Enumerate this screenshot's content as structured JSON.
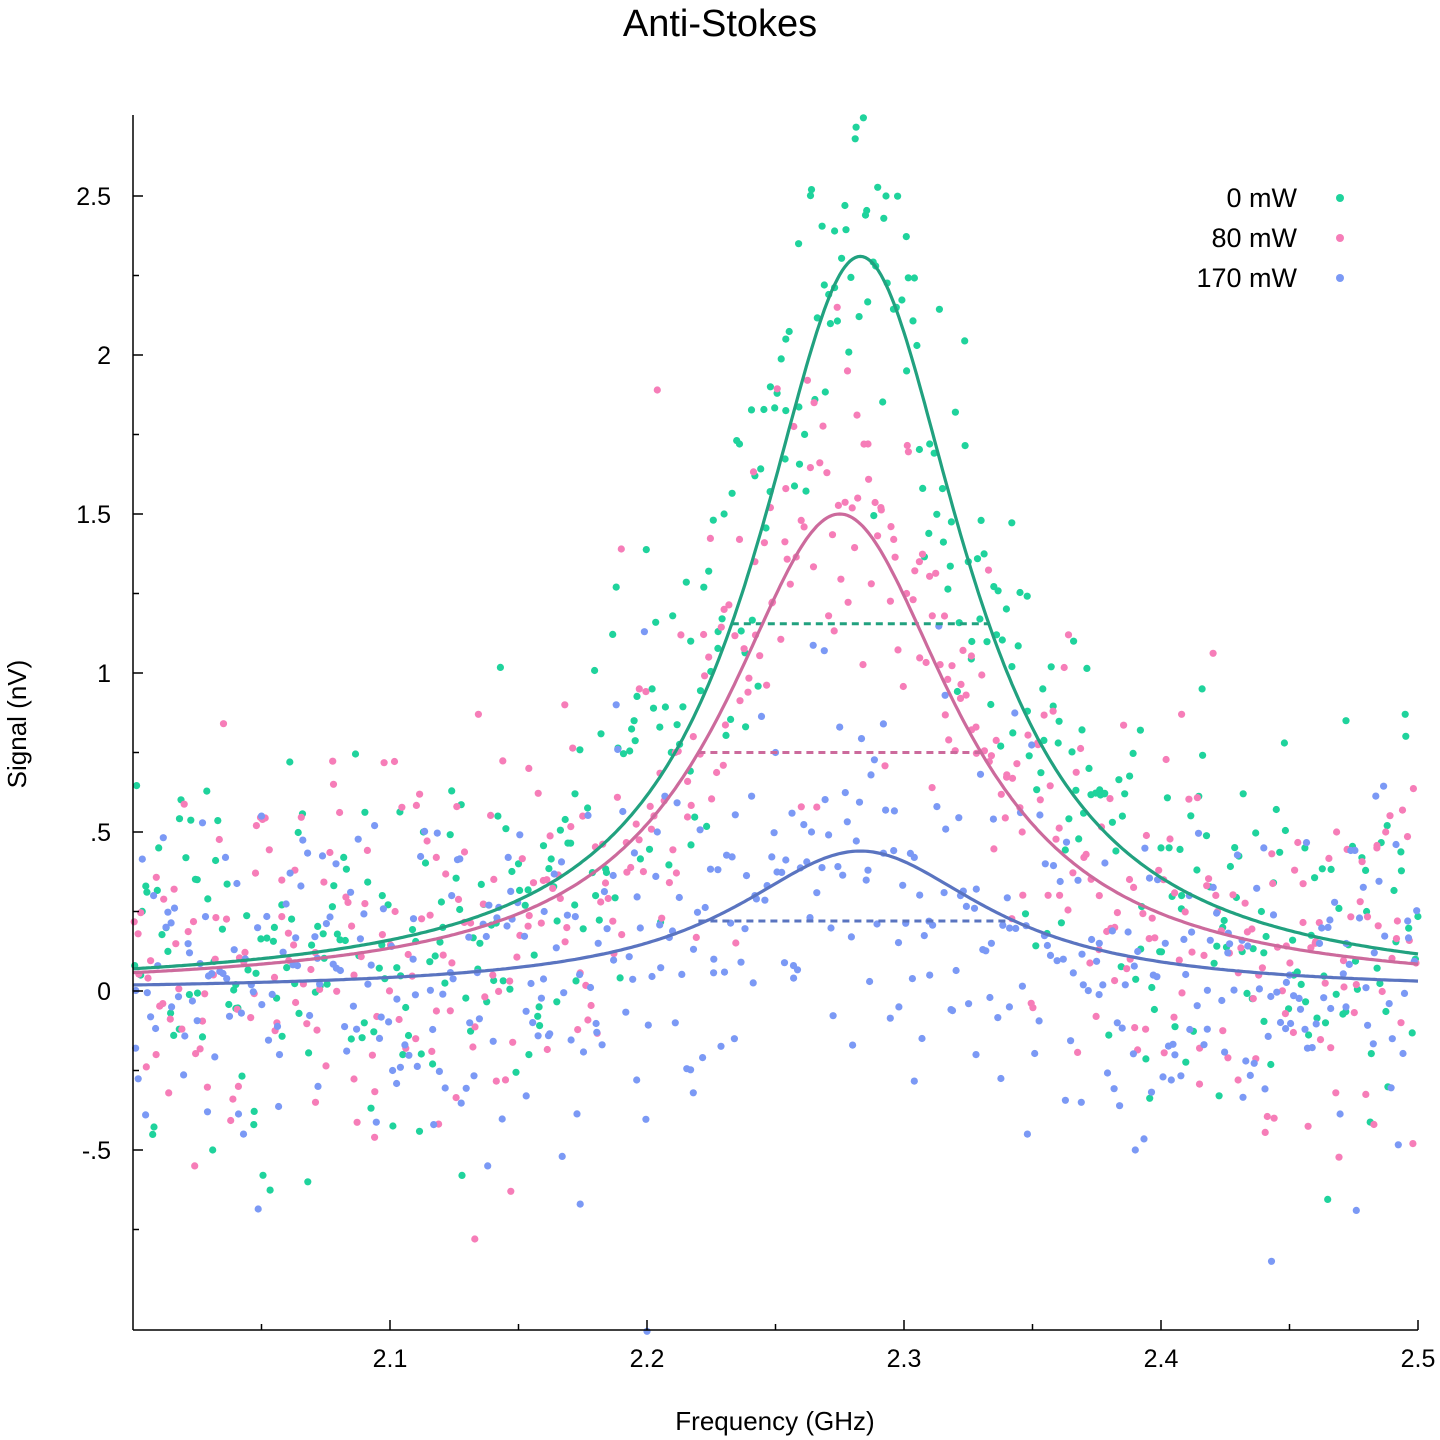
{
  "chart_data": {
    "type": "scatter",
    "title": "Anti-Stokes",
    "xlabel": "Frequency (GHz)",
    "ylabel": "Signal (nV)",
    "xlim": [
      2.0,
      2.5
    ],
    "ylim": [
      -1.07,
      2.75
    ],
    "x_ticks": [
      {
        "value": 2.1,
        "label": "2.1"
      },
      {
        "value": 2.2,
        "label": "2.2"
      },
      {
        "value": 2.3,
        "label": "2.3"
      },
      {
        "value": 2.4,
        "label": "2.4"
      },
      {
        "value": 2.5,
        "label": "2.5"
      }
    ],
    "x_minor_ticks": [
      2.05,
      2.15,
      2.25,
      2.35,
      2.45
    ],
    "y_ticks": [
      {
        "value": -0.5,
        "label": "-.5"
      },
      {
        "value": 0,
        "label": "0"
      },
      {
        "value": 0.5,
        "label": ".5"
      },
      {
        "value": 1,
        "label": "1"
      },
      {
        "value": 1.5,
        "label": "1.5"
      },
      {
        "value": 2,
        "label": "2"
      },
      {
        "value": 2.5,
        "label": "2.5"
      }
    ],
    "y_minor_ticks": [
      -0.75,
      -0.25,
      0.25,
      0.75,
      1.25,
      1.75,
      2.25
    ],
    "grid": false,
    "legend_position": "top-right",
    "series": [
      {
        "name": "0 mW",
        "marker_color": "#1fd39c",
        "fit_color": "#21a17f",
        "noise_sd": 0.27,
        "fit": {
          "model": "lorentzian",
          "amplitude": 2.31,
          "center": 2.283,
          "fwhm": 0.1,
          "offset": 0.0
        },
        "half_max": {
          "x_start": 2.233,
          "x_end": 2.333,
          "y": 1.155
        },
        "points": [
          [
            2.003,
            0.05
          ],
          [
            2.01,
            0.45
          ],
          [
            2.018,
            -0.12
          ],
          [
            2.025,
            0.35
          ],
          [
            2.031,
            -0.5
          ],
          [
            2.04,
            0.02
          ],
          [
            2.047,
            -0.42
          ],
          [
            2.055,
            0.2
          ],
          [
            2.061,
            0.72
          ],
          [
            2.068,
            -0.6
          ],
          [
            2.074,
            0.18
          ],
          [
            2.082,
            0.42
          ],
          [
            2.09,
            -0.1
          ],
          [
            2.097,
            0.3
          ],
          [
            2.105,
            -0.2
          ],
          [
            2.113,
            0.5
          ],
          [
            2.12,
            0.28
          ],
          [
            2.128,
            -0.58
          ],
          [
            2.135,
            0.15
          ],
          [
            2.142,
            0.55
          ],
          [
            2.15,
            0.4
          ],
          [
            2.158,
            -0.05
          ],
          [
            2.165,
            0.22
          ],
          [
            2.172,
            0.62
          ],
          [
            2.18,
            0.3
          ],
          [
            2.188,
            1.27
          ],
          [
            2.195,
            0.85
          ],
          [
            2.202,
            0.95
          ],
          [
            2.21,
            1.18
          ],
          [
            2.217,
            1.1
          ],
          [
            2.224,
            1.32
          ],
          [
            2.23,
            1.5
          ],
          [
            2.236,
            1.72
          ],
          [
            2.242,
            1.62
          ],
          [
            2.248,
            1.9
          ],
          [
            2.254,
            2.05
          ],
          [
            2.259,
            2.35
          ],
          [
            2.264,
            2.52
          ],
          [
            2.269,
            2.22
          ],
          [
            2.273,
            2.39
          ],
          [
            2.277,
            2.47
          ],
          [
            2.281,
            2.68
          ],
          [
            2.285,
            2.44
          ],
          [
            2.289,
            2.28
          ],
          [
            2.293,
            2.5
          ],
          [
            2.297,
            2.15
          ],
          [
            2.301,
            1.95
          ],
          [
            2.305,
            2.03
          ],
          [
            2.31,
            1.72
          ],
          [
            2.315,
            1.58
          ],
          [
            2.32,
            1.82
          ],
          [
            2.325,
            1.35
          ],
          [
            2.33,
            1.48
          ],
          [
            2.336,
            1.12
          ],
          [
            2.342,
            1.02
          ],
          [
            2.348,
            0.88
          ],
          [
            2.354,
            0.95
          ],
          [
            2.36,
            0.78
          ],
          [
            2.366,
            1.1
          ],
          [
            2.372,
            0.7
          ],
          [
            2.378,
            0.62
          ],
          [
            2.385,
            0.55
          ],
          [
            2.392,
            0.82
          ],
          [
            2.4,
            0.45
          ],
          [
            2.408,
            0.3
          ],
          [
            2.416,
            0.95
          ],
          [
            2.424,
            0.2
          ],
          [
            2.432,
            0.62
          ],
          [
            2.44,
            0.12
          ],
          [
            2.448,
            0.78
          ],
          [
            2.456,
            0.45
          ],
          [
            2.464,
            -0.1
          ],
          [
            2.472,
            0.85
          ],
          [
            2.48,
            0.25
          ],
          [
            2.488,
            0.52
          ],
          [
            2.495,
            0.87
          ],
          [
            2.499,
            0.1
          ]
        ]
      },
      {
        "name": "80 mW",
        "marker_color": "#f67db8",
        "fit_color": "#cc6a9c",
        "noise_sd": 0.27,
        "fit": {
          "model": "lorentzian",
          "amplitude": 1.5,
          "center": 2.275,
          "fwhm": 0.11,
          "offset": 0.0
        },
        "half_max": {
          "x_start": 2.22,
          "x_end": 2.33,
          "y": 0.75
        },
        "points": [
          [
            2.002,
            0.18
          ],
          [
            2.009,
            -0.2
          ],
          [
            2.016,
            0.32
          ],
          [
            2.024,
            -0.55
          ],
          [
            2.032,
            0.1
          ],
          [
            2.041,
            -0.3
          ],
          [
            2.048,
            0.52
          ],
          [
            2.056,
            -0.1
          ],
          [
            2.063,
            0.38
          ],
          [
            2.071,
            -0.35
          ],
          [
            2.078,
            0.65
          ],
          [
            2.086,
            0.05
          ],
          [
            2.094,
            -0.46
          ],
          [
            2.102,
            0.25
          ],
          [
            2.11,
            -0.15
          ],
          [
            2.118,
            0.42
          ],
          [
            2.126,
            0.58
          ],
          [
            2.133,
            -0.78
          ],
          [
            2.14,
            0.05
          ],
          [
            2.147,
            -0.63
          ],
          [
            2.154,
            0.7
          ],
          [
            2.161,
            0.35
          ],
          [
            2.168,
            0.9
          ],
          [
            2.175,
            0.55
          ],
          [
            2.182,
            0.28
          ],
          [
            2.19,
            1.39
          ],
          [
            2.197,
            0.95
          ],
          [
            2.204,
            1.89
          ],
          [
            2.211,
            0.75
          ],
          [
            2.218,
            0.8
          ],
          [
            2.224,
            1.05
          ],
          [
            2.23,
            1.2
          ],
          [
            2.236,
            1.42
          ],
          [
            2.242,
            1.35
          ],
          [
            2.248,
            1.52
          ],
          [
            2.254,
            1.58
          ],
          [
            2.26,
            1.48
          ],
          [
            2.265,
            1.85
          ],
          [
            2.27,
            1.63
          ],
          [
            2.274,
            2.15
          ],
          [
            2.278,
            1.95
          ],
          [
            2.282,
            1.55
          ],
          [
            2.286,
            1.72
          ],
          [
            2.291,
            1.52
          ],
          [
            2.296,
            1.42
          ],
          [
            2.301,
            1.25
          ],
          [
            2.306,
            1.35
          ],
          [
            2.311,
            1.18
          ],
          [
            2.317,
            0.98
          ],
          [
            2.322,
            0.92
          ],
          [
            2.328,
            0.83
          ],
          [
            2.334,
            0.74
          ],
          [
            2.34,
            0.68
          ],
          [
            2.346,
            0.5
          ],
          [
            2.352,
            0.78
          ],
          [
            2.358,
            0.88
          ],
          [
            2.364,
            1.12
          ],
          [
            2.37,
            0.42
          ],
          [
            2.376,
            0.3
          ],
          [
            2.382,
            0.2
          ],
          [
            2.388,
            0.1
          ],
          [
            2.394,
            -0.12
          ],
          [
            2.401,
            0.35
          ],
          [
            2.408,
            0.87
          ],
          [
            2.415,
            -0.18
          ],
          [
            2.422,
            0.25
          ],
          [
            2.43,
            -0.28
          ],
          [
            2.438,
            0.05
          ],
          [
            2.444,
            -0.4
          ],
          [
            2.452,
            0.38
          ],
          [
            2.46,
            0.15
          ],
          [
            2.468,
            -0.32
          ],
          [
            2.476,
            0.02
          ],
          [
            2.484,
            0.45
          ],
          [
            2.492,
            0.22
          ],
          [
            2.498,
            -0.48
          ]
        ]
      },
      {
        "name": "170 mW",
        "marker_color": "#7b99f5",
        "fit_color": "#5a74c0",
        "noise_sd": 0.27,
        "fit": {
          "model": "lorentzian",
          "amplitude": 0.44,
          "center": 2.283,
          "fwhm": 0.12,
          "offset": 0.0
        },
        "half_max": {
          "x_start": 2.22,
          "x_end": 2.34,
          "y": 0.22
        },
        "points": [
          [
            2.001,
            -0.18
          ],
          [
            2.008,
            0.3
          ],
          [
            2.015,
            -0.05
          ],
          [
            2.022,
            0.12
          ],
          [
            2.029,
            -0.38
          ],
          [
            2.036,
            0.42
          ],
          [
            2.043,
            -0.45
          ],
          [
            2.05,
            0.55
          ],
          [
            2.057,
            -0.2
          ],
          [
            2.064,
            0.08
          ],
          [
            2.072,
            -0.3
          ],
          [
            2.079,
            0.4
          ],
          [
            2.087,
            -0.12
          ],
          [
            2.094,
            0.52
          ],
          [
            2.101,
            -0.25
          ],
          [
            2.109,
            0.1
          ],
          [
            2.117,
            -0.42
          ],
          [
            2.124,
            0.3
          ],
          [
            2.131,
            -0.1
          ],
          [
            2.138,
            -0.55
          ],
          [
            2.146,
            0.42
          ],
          [
            2.153,
            -0.33
          ],
          [
            2.16,
            0.25
          ],
          [
            2.167,
            -0.52
          ],
          [
            2.174,
            -0.67
          ],
          [
            2.181,
            0.15
          ],
          [
            2.188,
            0.9
          ],
          [
            2.196,
            -0.28
          ],
          [
            2.199,
            1.13
          ],
          [
            2.204,
            0.5
          ],
          [
            2.211,
            -0.1
          ],
          [
            2.218,
            -0.32
          ],
          [
            2.226,
            0.1
          ],
          [
            2.234,
            -0.15
          ],
          [
            2.242,
            0.3
          ],
          [
            2.25,
            0.75
          ],
          [
            2.257,
            0.08
          ],
          [
            2.264,
            0.5
          ],
          [
            2.269,
            1.07
          ],
          [
            2.275,
            0.83
          ],
          [
            2.28,
            -0.17
          ],
          [
            2.286,
            0.38
          ],
          [
            2.292,
            0.84
          ],
          [
            2.298,
            -0.05
          ],
          [
            2.304,
            0.42
          ],
          [
            2.31,
            0.05
          ],
          [
            2.316,
            0.93
          ],
          [
            2.322,
            0.3
          ],
          [
            2.328,
            -0.2
          ],
          [
            2.334,
            0.15
          ],
          [
            2.341,
            -0.05
          ],
          [
            2.348,
            -0.45
          ],
          [
            2.355,
            0.4
          ],
          [
            2.362,
            0.1
          ],
          [
            2.369,
            -0.35
          ],
          [
            2.376,
            0.15
          ],
          [
            2.383,
            -0.1
          ],
          [
            2.39,
            -0.5
          ],
          [
            2.397,
            0.05
          ],
          [
            2.404,
            -0.28
          ],
          [
            2.411,
            0.3
          ],
          [
            2.418,
            -0.12
          ],
          [
            2.426,
            0.12
          ],
          [
            2.433,
            -0.22
          ],
          [
            2.44,
            0.45
          ],
          [
            2.443,
            -0.85
          ],
          [
            2.45,
            0.05
          ],
          [
            2.457,
            -0.18
          ],
          [
            2.465,
            0.2
          ],
          [
            2.472,
            -0.05
          ],
          [
            2.476,
            -0.69
          ],
          [
            2.483,
            0.12
          ],
          [
            2.49,
            -0.15
          ],
          [
            2.496,
            0.22
          ],
          [
            2.2,
            -1.07
          ]
        ]
      }
    ]
  }
}
